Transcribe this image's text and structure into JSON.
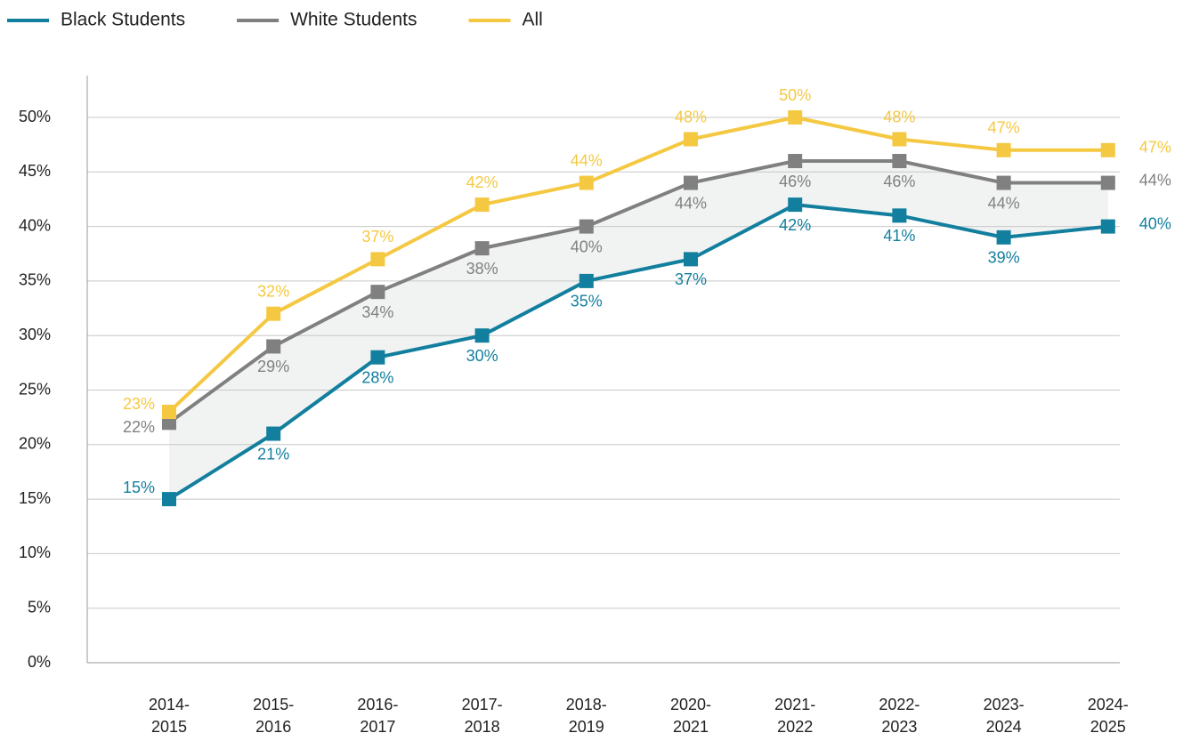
{
  "chart_data": {
    "type": "line",
    "categories": [
      "2014-2015",
      "2015-2016",
      "2016-2017",
      "2017-2018",
      "2018-2019",
      "2020-2021",
      "2021-2022",
      "2022-2023",
      "2023-2024",
      "2024-2025"
    ],
    "series": [
      {
        "name": "Black Students",
        "color": "#127f9e",
        "values": [
          15,
          21,
          28,
          30,
          35,
          37,
          42,
          41,
          39,
          40
        ],
        "value_labels": [
          "15%",
          "21%",
          "28%",
          "30%",
          "35%",
          "37%",
          "42%",
          "41%",
          "39%",
          "40%"
        ]
      },
      {
        "name": "White Students",
        "color": "#808080",
        "values": [
          22,
          29,
          34,
          38,
          40,
          44,
          46,
          46,
          44,
          44
        ],
        "value_labels": [
          "22%",
          "29%",
          "34%",
          "38%",
          "40%",
          "44%",
          "46%",
          "46%",
          "44%",
          "44%"
        ]
      },
      {
        "name": "All",
        "color": "#f5c842",
        "values": [
          23,
          32,
          37,
          42,
          44,
          48,
          50,
          48,
          47,
          47
        ],
        "value_labels": [
          "23%",
          "32%",
          "37%",
          "42%",
          "44%",
          "48%",
          "50%",
          "48%",
          "47%",
          "47%"
        ]
      }
    ],
    "ylim": [
      0,
      50
    ],
    "yticks": [
      {
        "value": 0,
        "label": "0%"
      },
      {
        "value": 5,
        "label": "5%"
      },
      {
        "value": 10,
        "label": "10%"
      },
      {
        "value": 15,
        "label": "15%"
      },
      {
        "value": 20,
        "label": "20%"
      },
      {
        "value": 25,
        "label": "25%"
      },
      {
        "value": 30,
        "label": "30%"
      },
      {
        "value": 35,
        "label": "35%"
      },
      {
        "value": 40,
        "label": "40%"
      },
      {
        "value": 45,
        "label": "45%"
      },
      {
        "value": 50,
        "label": "50%"
      }
    ],
    "grid": true,
    "legend": "top"
  }
}
